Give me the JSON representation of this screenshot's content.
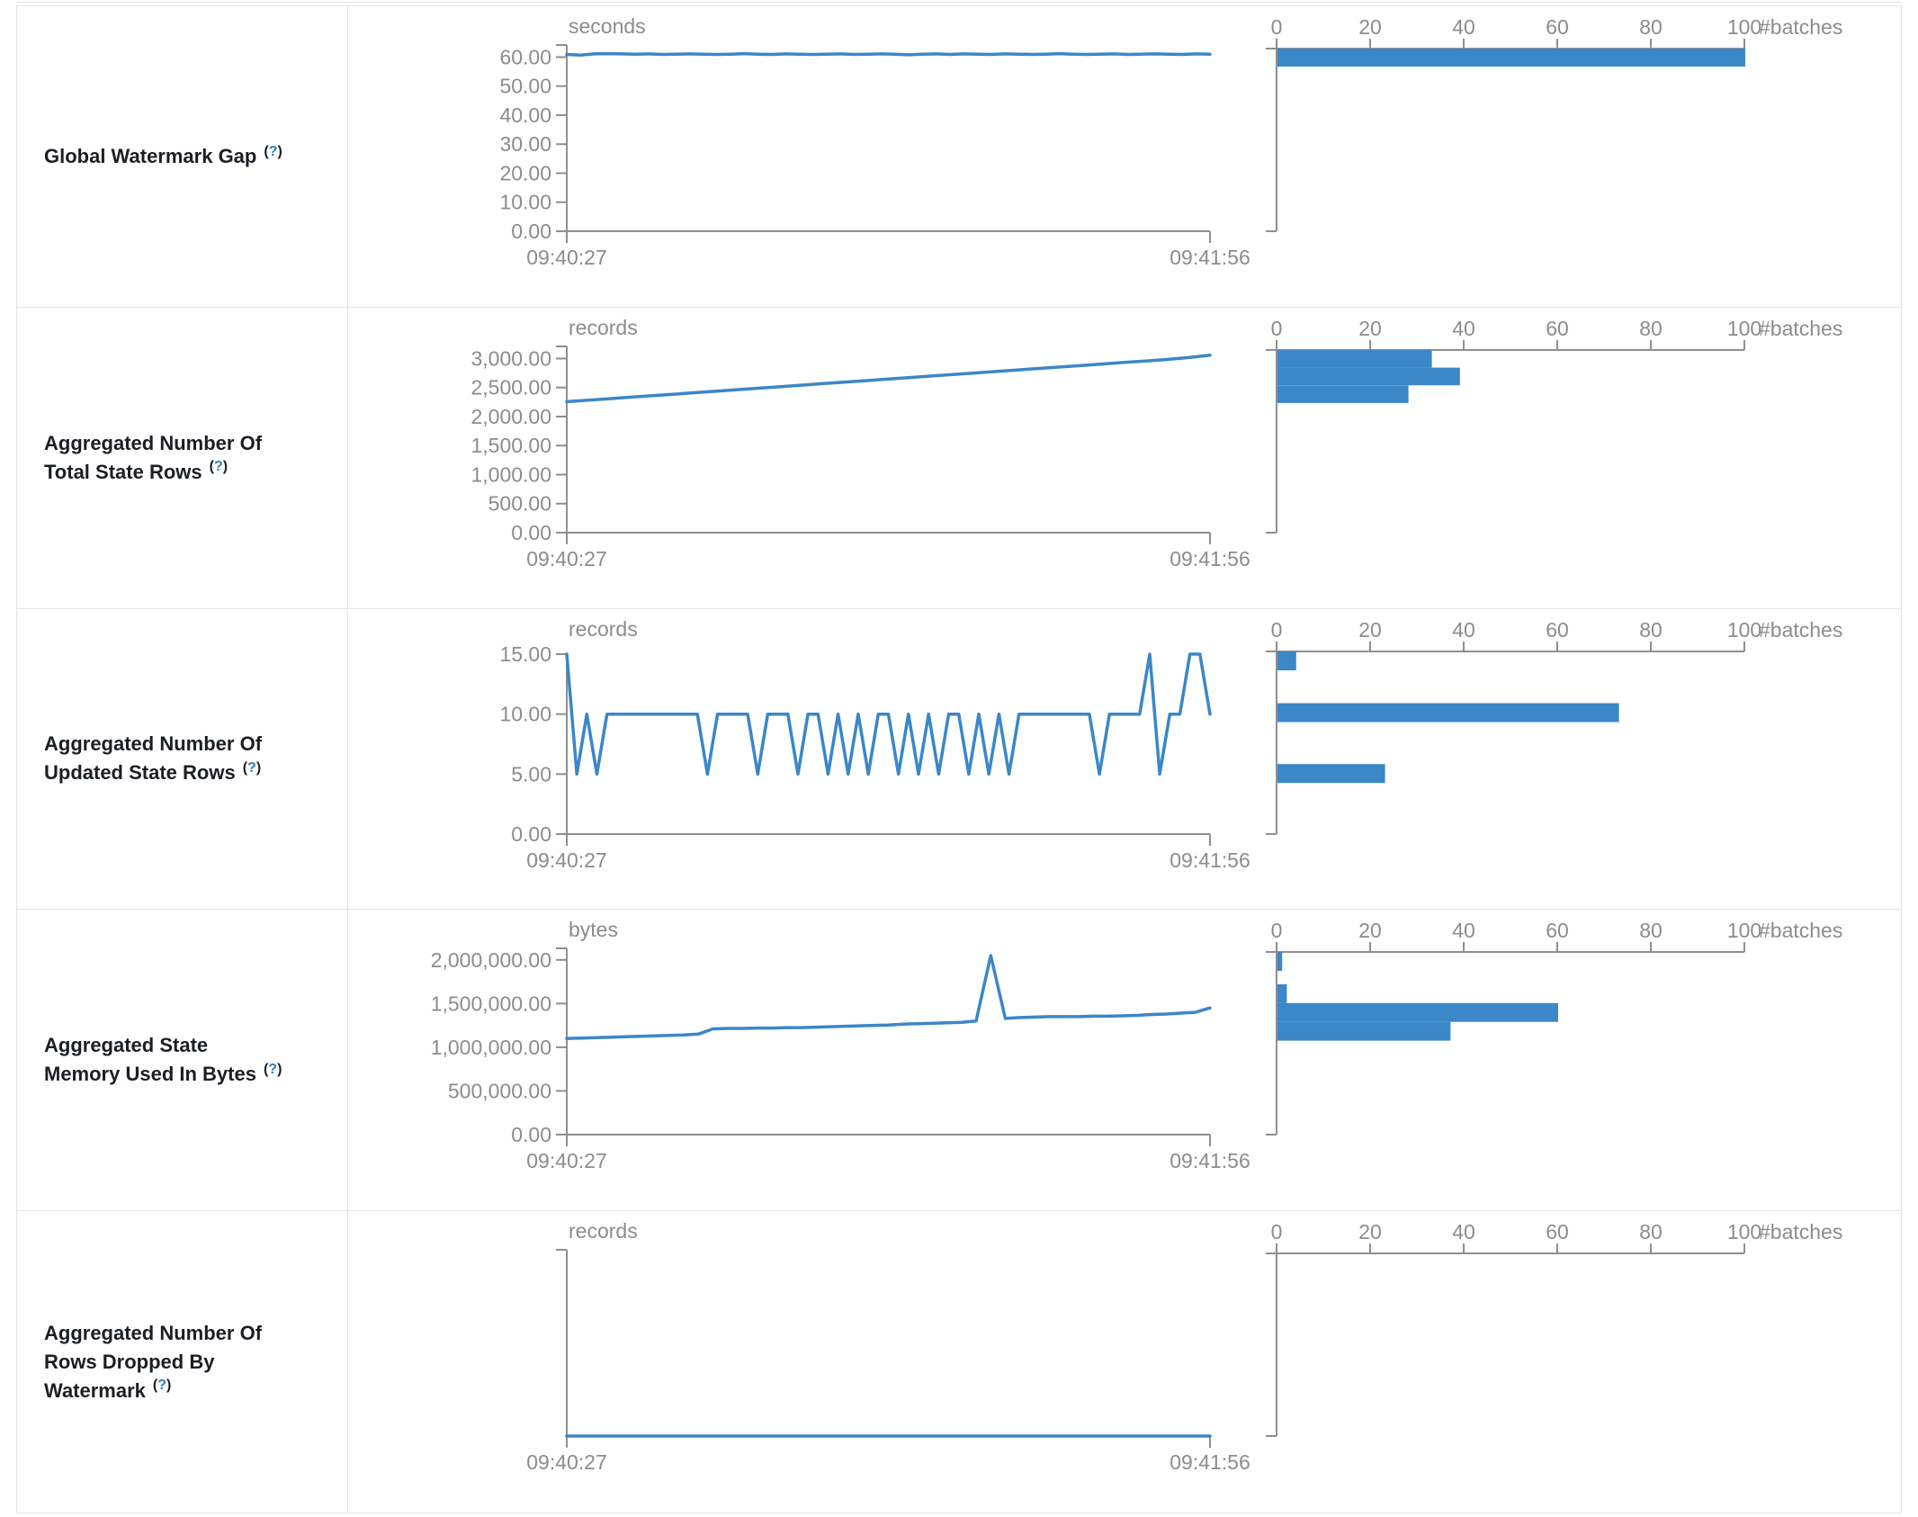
{
  "colors": {
    "accent_blue": "#3b87c8",
    "axis_gray": "#8f8f8f",
    "tick_text_gray": "#8c8c8c",
    "label_text": "#1b1e24",
    "help_blue": "#2e7eb8",
    "border": "#e2e5e9"
  },
  "help": {
    "open": "(",
    "q": "?",
    "close": ")"
  },
  "hist_axis": {
    "ticks": [
      0,
      20,
      40,
      60,
      80,
      100
    ],
    "max": 100,
    "label": "#batches"
  },
  "time_axis": {
    "start": "09:40:27",
    "end": "09:41:56"
  },
  "chart_data": [
    {
      "label": "Global Watermark Gap",
      "timeline": {
        "type": "line",
        "unit": "seconds",
        "x_start": "09:40:27",
        "x_end": "09:41:56",
        "y_max": 62,
        "y_ticks": [
          {
            "v": 60,
            "label": "60.00"
          },
          {
            "v": 50,
            "label": "50.00"
          },
          {
            "v": 40,
            "label": "40.00"
          },
          {
            "v": 30,
            "label": "30.00"
          },
          {
            "v": 20,
            "label": "20.00"
          },
          {
            "v": 10,
            "label": "10.00"
          },
          {
            "v": 0,
            "label": "0.00"
          }
        ],
        "values": [
          60.9,
          60.7,
          61.1,
          61.2,
          61.1,
          61.0,
          61.1,
          60.9,
          61.0,
          61.1,
          61.0,
          60.9,
          61.0,
          61.2,
          61.0,
          60.9,
          61.1,
          61.0,
          60.9,
          61.0,
          61.1,
          60.9,
          61.0,
          61.1,
          61.0,
          60.8,
          61.0,
          61.1,
          60.9,
          61.1,
          61.0,
          60.9,
          61.1,
          61.0,
          60.9,
          61.0,
          61.2,
          61.0,
          60.9,
          61.0,
          61.1,
          60.9,
          61.0,
          61.1,
          61.0,
          60.9,
          61.1,
          61.0
        ]
      },
      "histogram": {
        "type": "bar",
        "xlabel": "#batches",
        "x_ticks": [
          0,
          20,
          40,
          60,
          80,
          100
        ],
        "x_max": 100,
        "bins": [
          {
            "lo": 55.9,
            "hi": 62,
            "count": 100
          }
        ]
      }
    },
    {
      "label": "Aggregated Number Of Total State Rows",
      "timeline": {
        "type": "line",
        "unit": "records",
        "x_start": "09:40:27",
        "x_end": "09:41:56",
        "y_max": 3100,
        "y_ticks": [
          {
            "v": 3000,
            "label": "3,000.00"
          },
          {
            "v": 2500,
            "label": "2,500.00"
          },
          {
            "v": 2000,
            "label": "2,000.00"
          },
          {
            "v": 1500,
            "label": "1,500.00"
          },
          {
            "v": 1000,
            "label": "1,000.00"
          },
          {
            "v": 500,
            "label": "500.00"
          },
          {
            "v": 0,
            "label": "0.00"
          }
        ],
        "values": [
          2257,
          2282,
          2308,
          2334,
          2360,
          2386,
          2412,
          2438,
          2464,
          2490,
          2516,
          2542,
          2568,
          2594,
          2620,
          2646,
          2672,
          2698,
          2724,
          2750,
          2776,
          2802,
          2828,
          2854,
          2880,
          2906,
          2932,
          2958,
          2984,
          3016,
          3058
        ]
      },
      "histogram": {
        "type": "bar",
        "xlabel": "#batches",
        "x_ticks": [
          0,
          20,
          40,
          60,
          80,
          100
        ],
        "x_max": 100,
        "bins": [
          {
            "lo": 2800,
            "hi": 3100,
            "count": 33
          },
          {
            "lo": 2500,
            "hi": 2800,
            "count": 39
          },
          {
            "lo": 2200,
            "hi": 2500,
            "count": 28
          }
        ]
      }
    },
    {
      "label": "Aggregated Number Of Updated State Rows",
      "timeline": {
        "type": "line",
        "unit": "records",
        "x_start": "09:40:27",
        "x_end": "09:41:56",
        "y_max": 15,
        "y_ticks": [
          {
            "v": 15,
            "label": "15.00"
          },
          {
            "v": 10,
            "label": "10.00"
          },
          {
            "v": 5,
            "label": "5.00"
          },
          {
            "v": 0,
            "label": "0.00"
          }
        ],
        "values": [
          15,
          5,
          10,
          5,
          10,
          10,
          10,
          10,
          10,
          10,
          10,
          10,
          10,
          10,
          5,
          10,
          10,
          10,
          10,
          5,
          10,
          10,
          10,
          5,
          10,
          10,
          5,
          10,
          5,
          10,
          5,
          10,
          10,
          5,
          10,
          5,
          10,
          5,
          10,
          10,
          5,
          10,
          5,
          10,
          5,
          10,
          10,
          10,
          10,
          10,
          10,
          10,
          10,
          5,
          10,
          10,
          10,
          10,
          15,
          5,
          10,
          10,
          15,
          15,
          10
        ]
      },
      "histogram": {
        "type": "bar",
        "xlabel": "#batches",
        "x_ticks": [
          0,
          20,
          40,
          60,
          80,
          100
        ],
        "x_max": 100,
        "bins": [
          {
            "lo": 13.45,
            "hi": 15,
            "count": 4
          },
          {
            "lo": 9.2,
            "hi": 10.75,
            "count": 73
          },
          {
            "lo": 4.2,
            "hi": 5.75,
            "count": 23
          }
        ]
      }
    },
    {
      "label": "Aggregated State Memory Used In Bytes",
      "timeline": {
        "type": "line",
        "unit": "bytes",
        "x_start": "09:40:27",
        "x_end": "09:41:56",
        "y_max": 2060000,
        "y_ticks": [
          {
            "v": 2000000,
            "label": "2,000,000.00"
          },
          {
            "v": 1500000,
            "label": "1,500,000.00"
          },
          {
            "v": 1000000,
            "label": "1,000,000.00"
          },
          {
            "v": 500000,
            "label": "500,000.00"
          },
          {
            "v": 0,
            "label": "0.00"
          }
        ],
        "values": [
          1100000,
          1105000,
          1110000,
          1115000,
          1120000,
          1125000,
          1130000,
          1135000,
          1140000,
          1150000,
          1210000,
          1215000,
          1215000,
          1220000,
          1220000,
          1225000,
          1225000,
          1230000,
          1235000,
          1240000,
          1245000,
          1250000,
          1255000,
          1265000,
          1270000,
          1275000,
          1280000,
          1285000,
          1300000,
          2050000,
          1330000,
          1340000,
          1345000,
          1350000,
          1350000,
          1350000,
          1355000,
          1355000,
          1360000,
          1365000,
          1375000,
          1380000,
          1390000,
          1400000,
          1450000
        ]
      },
      "histogram": {
        "type": "bar",
        "xlabel": "#batches",
        "x_ticks": [
          0,
          20,
          40,
          60,
          80,
          100
        ],
        "x_max": 100,
        "bins": [
          {
            "lo": 1848000,
            "hi": 2060000,
            "count": 1
          },
          {
            "lo": 1484000,
            "hi": 1696000,
            "count": 2
          },
          {
            "lo": 1272000,
            "hi": 1484000,
            "count": 60
          },
          {
            "lo": 1060000,
            "hi": 1272000,
            "count": 37
          }
        ]
      }
    },
    {
      "label": "Aggregated Number Of Rows Dropped By Watermark",
      "timeline": {
        "type": "line",
        "unit": "records",
        "x_start": "09:40:27",
        "x_end": "09:41:56",
        "y_max": 1,
        "y_ticks": [],
        "values": [
          0,
          0,
          0,
          0,
          0,
          0,
          0,
          0,
          0,
          0,
          0,
          0,
          0,
          0,
          0,
          0,
          0,
          0,
          0,
          0,
          0,
          0,
          0,
          0,
          0
        ]
      },
      "histogram": {
        "type": "bar",
        "xlabel": "#batches",
        "x_ticks": [
          0,
          20,
          40,
          60,
          80,
          100
        ],
        "x_max": 100,
        "bins": []
      }
    }
  ]
}
